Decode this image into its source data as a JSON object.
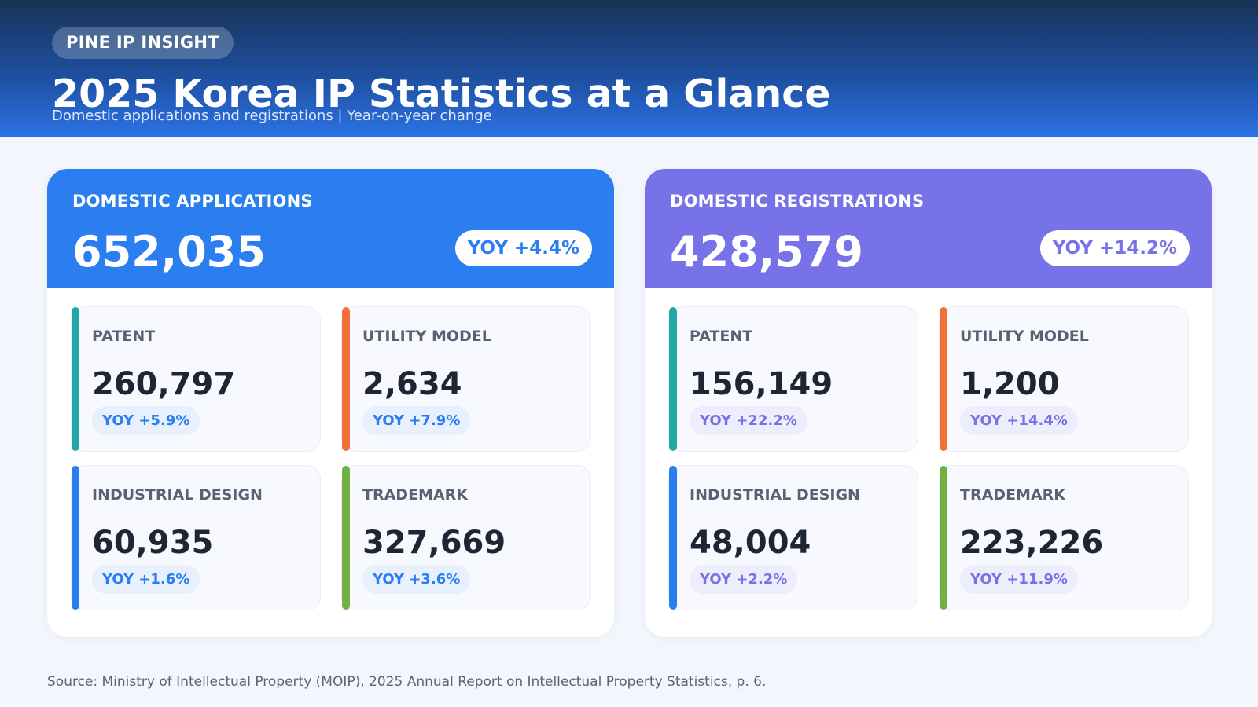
{
  "header": {
    "brand": "PINE IP INSIGHT",
    "title": "2025 Korea IP Statistics at a Glance",
    "subtitle": "Domestic applications and registrations | Year-on-year change"
  },
  "colors": {
    "applications_accent": "#2b7ef0",
    "registrations_accent": "#7872e8",
    "patent_bar": "#22a9a5",
    "utility_bar": "#f2713a",
    "design_bar": "#2b7ef0",
    "trademark_bar": "#72b043"
  },
  "applications": {
    "label": "DOMESTIC APPLICATIONS",
    "total": "652,035",
    "yoy": "YOY +4.4%",
    "cards": [
      {
        "label": "PATENT",
        "value": "260,797",
        "yoy": "YOY +5.9%"
      },
      {
        "label": "UTILITY MODEL",
        "value": "2,634",
        "yoy": "YOY +7.9%"
      },
      {
        "label": "INDUSTRIAL DESIGN",
        "value": "60,935",
        "yoy": "YOY +1.6%"
      },
      {
        "label": "TRADEMARK",
        "value": "327,669",
        "yoy": "YOY +3.6%"
      }
    ]
  },
  "registrations": {
    "label": "DOMESTIC REGISTRATIONS",
    "total": "428,579",
    "yoy": "YOY +14.2%",
    "cards": [
      {
        "label": "PATENT",
        "value": "156,149",
        "yoy": "YOY +22.2%"
      },
      {
        "label": "UTILITY MODEL",
        "value": "1,200",
        "yoy": "YOY +14.4%"
      },
      {
        "label": "INDUSTRIAL DESIGN",
        "value": "48,004",
        "yoy": "YOY +2.2%"
      },
      {
        "label": "TRADEMARK",
        "value": "223,226",
        "yoy": "YOY +11.9%"
      }
    ]
  },
  "footer": {
    "source": "Source: Ministry of Intellectual Property (MOIP), 2025 Annual Report on Intellectual Property Statistics, p. 6."
  }
}
